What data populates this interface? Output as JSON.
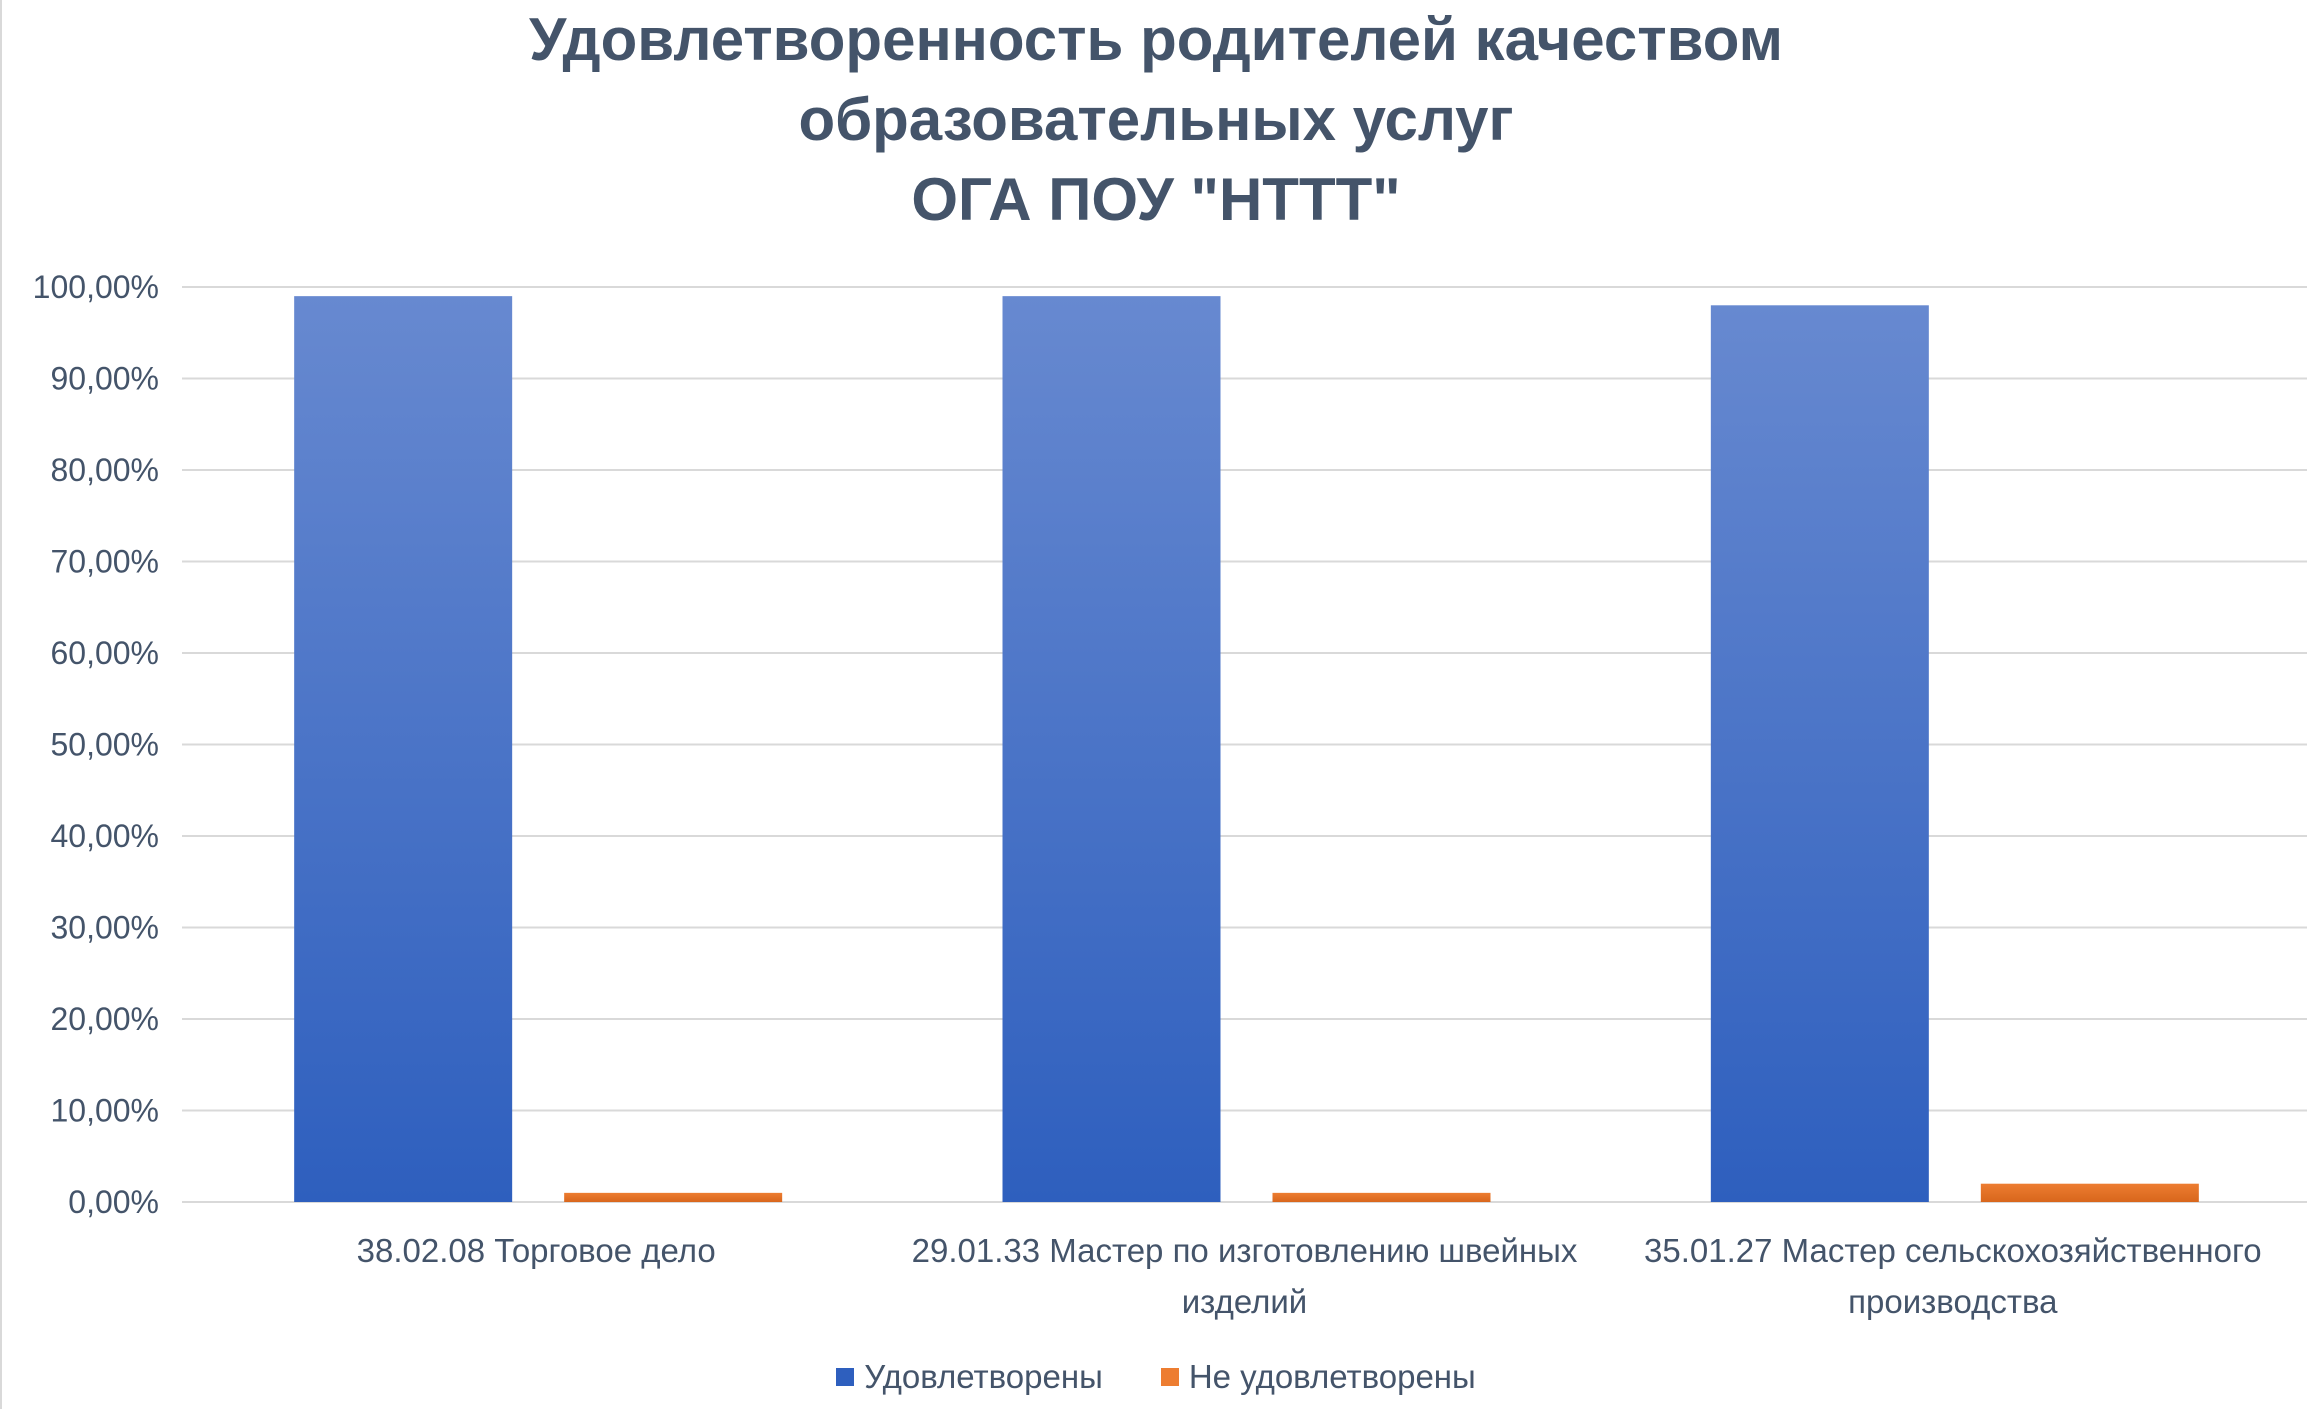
{
  "colors": {
    "series_blue_top": "#6789d0",
    "series_blue_bottom": "#2e5fbe",
    "series_orange": "#ed7d31",
    "series_orange_dark": "#d8661c",
    "grid": "#d9d9d9",
    "text": "#44546a"
  },
  "chart_data": {
    "type": "bar",
    "title_lines": [
      "Удовлетворенность родителей качеством",
      "образовательных услуг",
      "ОГА ПОУ \"НТТТ\""
    ],
    "categories": [
      [
        "38.02.08 Торговое дело"
      ],
      [
        "29.01.33 Мастер по изготовлению швейных",
        "изделий"
      ],
      [
        "35.01.27 Мастер сельскохозяйственного",
        "производства"
      ]
    ],
    "series": [
      {
        "name": "Удовлетворены",
        "values": [
          0.99,
          0.99,
          0.98
        ]
      },
      {
        "name": "Не удовлетворены",
        "values": [
          0.01,
          0.01,
          0.02
        ]
      }
    ],
    "ylim": [
      0,
      1
    ],
    "yticks": [
      0,
      0.1,
      0.2,
      0.3,
      0.4,
      0.5,
      0.6,
      0.7,
      0.8,
      0.9,
      1.0
    ],
    "ytick_labels": [
      "0,00%",
      "10,00%",
      "20,00%",
      "30,00%",
      "40,00%",
      "50,00%",
      "60,00%",
      "70,00%",
      "80,00%",
      "90,00%",
      "100,00%"
    ],
    "grid": true,
    "legend": "bottom"
  }
}
